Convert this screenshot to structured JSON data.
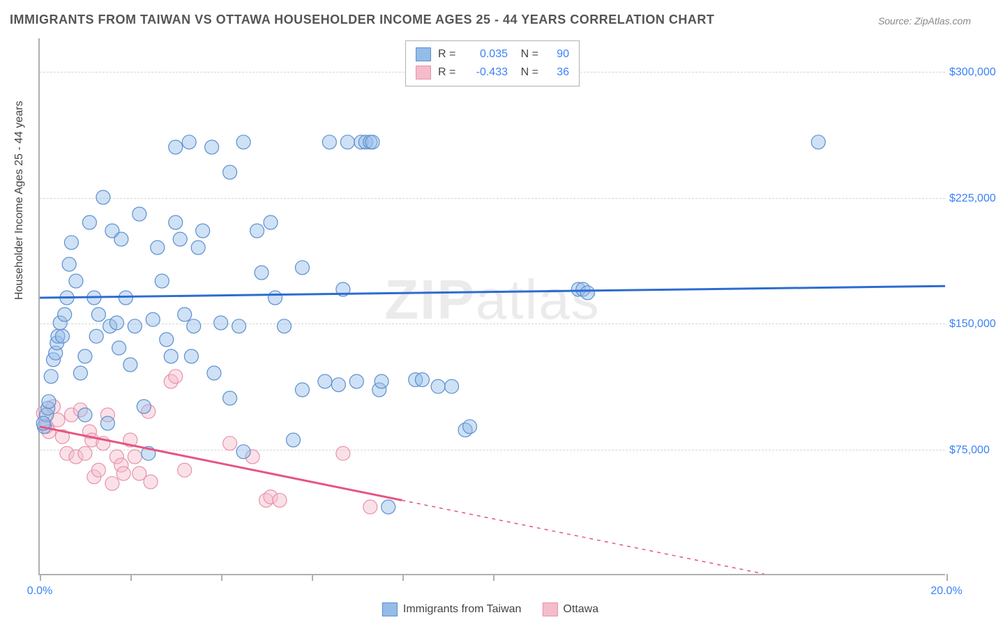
{
  "title": "IMMIGRANTS FROM TAIWAN VS OTTAWA HOUSEHOLDER INCOME AGES 25 - 44 YEARS CORRELATION CHART",
  "source_label": "Source: ZipAtlas.com",
  "ylabel": "Householder Income Ages 25 - 44 years",
  "watermark_a": "ZIP",
  "watermark_b": "atlas",
  "chart": {
    "type": "scatter",
    "background_color": "#ffffff",
    "gridline_color": "#d5d5d5",
    "axis_color": "#b0b0b0",
    "tick_label_color": "#3b82f6",
    "tick_fontsize": 16,
    "title_fontsize": 18,
    "xlim": [
      0.0,
      20.0
    ],
    "ylim": [
      0,
      320000
    ],
    "xticks": [
      0.0,
      2.0,
      4.0,
      6.0,
      8.0,
      10.0,
      20.0
    ],
    "xlabels": {
      "0": "0.0%",
      "20": "20.0%"
    },
    "yticks": [
      75000,
      150000,
      225000,
      300000
    ],
    "ylabels": {
      "75000": "$75,000",
      "150000": "$150,000",
      "225000": "$225,000",
      "300000": "$300,000"
    },
    "marker_radius": 10,
    "marker_opacity": 0.45,
    "series_a": {
      "name": "Immigrants from Taiwan",
      "fill_color": "#94bce8",
      "stroke_color": "#5a8fd0",
      "line_color": "#2c6cd1",
      "line_width": 3,
      "r": "0.035",
      "n": "90",
      "regression": {
        "x1": 0.0,
        "y1": 165000,
        "x2": 20.0,
        "y2": 172000
      },
      "points": [
        [
          0.1,
          88000
        ],
        [
          0.15,
          95000
        ],
        [
          0.18,
          99000
        ],
        [
          0.2,
          103000
        ],
        [
          0.25,
          118000
        ],
        [
          0.3,
          128000
        ],
        [
          0.35,
          132000
        ],
        [
          0.38,
          138000
        ],
        [
          0.4,
          142000
        ],
        [
          0.45,
          150000
        ],
        [
          0.5,
          142000
        ],
        [
          0.55,
          155000
        ],
        [
          0.6,
          165000
        ],
        [
          0.65,
          185000
        ],
        [
          0.7,
          198000
        ],
        [
          0.8,
          175000
        ],
        [
          0.9,
          120000
        ],
        [
          1.0,
          95000
        ],
        [
          1.0,
          130000
        ],
        [
          1.1,
          210000
        ],
        [
          1.2,
          165000
        ],
        [
          1.25,
          142000
        ],
        [
          1.3,
          155000
        ],
        [
          1.4,
          225000
        ],
        [
          1.5,
          90000
        ],
        [
          1.55,
          148000
        ],
        [
          1.6,
          205000
        ],
        [
          1.7,
          150000
        ],
        [
          1.75,
          135000
        ],
        [
          1.8,
          200000
        ],
        [
          1.9,
          165000
        ],
        [
          2.0,
          125000
        ],
        [
          2.1,
          148000
        ],
        [
          2.2,
          215000
        ],
        [
          2.3,
          100000
        ],
        [
          2.4,
          72000
        ],
        [
          2.5,
          152000
        ],
        [
          2.6,
          195000
        ],
        [
          2.7,
          175000
        ],
        [
          2.8,
          140000
        ],
        [
          2.9,
          130000
        ],
        [
          3.0,
          255000
        ],
        [
          3.0,
          210000
        ],
        [
          3.1,
          200000
        ],
        [
          3.2,
          155000
        ],
        [
          3.3,
          258000
        ],
        [
          3.35,
          130000
        ],
        [
          3.4,
          148000
        ],
        [
          3.5,
          195000
        ],
        [
          3.6,
          205000
        ],
        [
          3.8,
          255000
        ],
        [
          3.85,
          120000
        ],
        [
          4.0,
          150000
        ],
        [
          4.2,
          240000
        ],
        [
          4.2,
          105000
        ],
        [
          4.4,
          148000
        ],
        [
          4.5,
          258000
        ],
        [
          4.5,
          73000
        ],
        [
          4.8,
          205000
        ],
        [
          4.9,
          180000
        ],
        [
          5.1,
          210000
        ],
        [
          5.2,
          165000
        ],
        [
          5.4,
          148000
        ],
        [
          5.6,
          80000
        ],
        [
          5.8,
          183000
        ],
        [
          5.8,
          110000
        ],
        [
          6.3,
          115000
        ],
        [
          6.4,
          258000
        ],
        [
          6.6,
          113000
        ],
        [
          6.7,
          170000
        ],
        [
          6.8,
          258000
        ],
        [
          7.0,
          115000
        ],
        [
          7.1,
          258000
        ],
        [
          7.2,
          258000
        ],
        [
          7.3,
          258000
        ],
        [
          7.35,
          258000
        ],
        [
          7.5,
          110000
        ],
        [
          7.55,
          115000
        ],
        [
          7.7,
          40000
        ],
        [
          8.3,
          116000
        ],
        [
          8.45,
          116000
        ],
        [
          8.8,
          112000
        ],
        [
          9.1,
          112000
        ],
        [
          9.4,
          86000
        ],
        [
          9.5,
          88000
        ],
        [
          11.9,
          170000
        ],
        [
          12.0,
          170000
        ],
        [
          12.1,
          168000
        ],
        [
          17.2,
          258000
        ],
        [
          0.08,
          90000
        ]
      ]
    },
    "series_b": {
      "name": "Ottawa",
      "fill_color": "#f5bccb",
      "stroke_color": "#e891aa",
      "line_color": "#e75480",
      "line_width": 3,
      "r": "-0.433",
      "n": "36",
      "regression_solid": {
        "x1": 0.0,
        "y1": 88000,
        "x2": 8.0,
        "y2": 44000
      },
      "regression_dashed": {
        "x1": 8.0,
        "y1": 44000,
        "x2": 20.0,
        "y2": -22000,
        "clip_y": 0
      },
      "extrapolation_dash": "5,6",
      "points": [
        [
          0.08,
          96000
        ],
        [
          0.15,
          88000
        ],
        [
          0.2,
          85000
        ],
        [
          0.3,
          100000
        ],
        [
          0.4,
          92000
        ],
        [
          0.5,
          82000
        ],
        [
          0.6,
          72000
        ],
        [
          0.7,
          95000
        ],
        [
          0.8,
          70000
        ],
        [
          0.9,
          98000
        ],
        [
          1.0,
          72000
        ],
        [
          1.1,
          85000
        ],
        [
          1.15,
          80000
        ],
        [
          1.2,
          58000
        ],
        [
          1.3,
          62000
        ],
        [
          1.4,
          78000
        ],
        [
          1.5,
          95000
        ],
        [
          1.6,
          54000
        ],
        [
          1.7,
          70000
        ],
        [
          1.8,
          65000
        ],
        [
          1.85,
          60000
        ],
        [
          2.0,
          80000
        ],
        [
          2.1,
          70000
        ],
        [
          2.2,
          60000
        ],
        [
          2.4,
          97000
        ],
        [
          2.45,
          55000
        ],
        [
          2.9,
          115000
        ],
        [
          3.0,
          118000
        ],
        [
          3.2,
          62000
        ],
        [
          4.2,
          78000
        ],
        [
          4.7,
          70000
        ],
        [
          5.0,
          44000
        ],
        [
          5.1,
          46000
        ],
        [
          5.3,
          44000
        ],
        [
          6.7,
          72000
        ],
        [
          7.3,
          40000
        ]
      ]
    },
    "legend_top": {
      "border_color": "#b0b0b0",
      "r_prefix": "R =",
      "n_prefix": "N ="
    },
    "legend_bottom_labels": {
      "a": "Immigrants from Taiwan",
      "b": "Ottawa"
    }
  }
}
